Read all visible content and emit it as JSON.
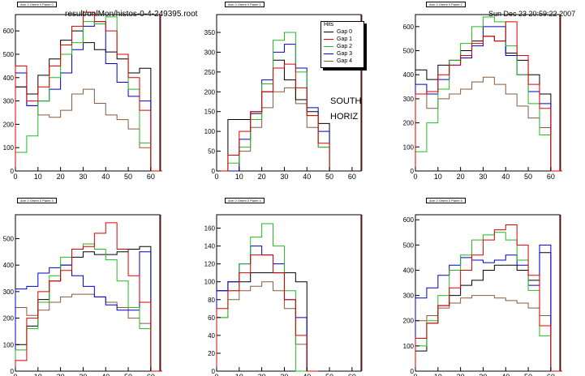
{
  "header": {
    "file_path": "result/onlMon/histos-0-4-249395.root",
    "datetime": "Sun Dec 23 20:59:22 2007"
  },
  "annotation": {
    "line1": "SOUTH",
    "line2": "HORIZ"
  },
  "legend": {
    "title": "Hits",
    "entries": [
      "Gap 0",
      "Gap 1",
      "Gap 2",
      "Gap 3",
      "Gap 4"
    ]
  },
  "colors": {
    "Gap 0": "#000000",
    "Gap 1": "#dd0000",
    "Gap 2": "#22bb22",
    "Gap 3": "#0000cc",
    "Gap 4": "#8b5a3c"
  },
  "chart_data": [
    {
      "type": "line",
      "title": "Arm 0 Orient 0 Panel 0",
      "xlim": [
        0,
        64
      ],
      "ylim": [
        0,
        670
      ],
      "xticks": [
        0,
        10,
        20,
        30,
        40,
        50,
        60
      ],
      "yticks": [
        0,
        100,
        200,
        300,
        400,
        500,
        600
      ],
      "x": [
        0,
        5,
        10,
        15,
        20,
        25,
        30,
        35,
        40,
        45,
        50,
        55,
        60
      ],
      "series": [
        {
          "name": "Gap 0",
          "values": [
            360,
            330,
            410,
            480,
            560,
            600,
            550,
            520,
            510,
            480,
            420,
            440,
            0
          ]
        },
        {
          "name": "Gap 1",
          "values": [
            450,
            300,
            360,
            450,
            540,
            620,
            680,
            640,
            600,
            500,
            400,
            260,
            0
          ]
        },
        {
          "name": "Gap 2",
          "values": [
            80,
            150,
            300,
            400,
            500,
            550,
            640,
            630,
            660,
            500,
            350,
            120,
            0
          ]
        },
        {
          "name": "Gap 3",
          "values": [
            420,
            280,
            300,
            350,
            420,
            520,
            620,
            640,
            460,
            380,
            320,
            300,
            0
          ]
        },
        {
          "name": "Gap 4",
          "values": [
            360,
            280,
            240,
            230,
            260,
            330,
            350,
            290,
            240,
            220,
            180,
            100,
            0
          ]
        }
      ]
    },
    {
      "type": "line",
      "title": "Arm 0 Orient 0 Panel 1",
      "xlim": [
        0,
        64
      ],
      "ylim": [
        0,
        395
      ],
      "xticks": [
        0,
        10,
        20,
        30,
        40,
        50,
        60
      ],
      "yticks": [
        0,
        50,
        100,
        150,
        200,
        250,
        300,
        350
      ],
      "x": [
        0,
        5,
        10,
        15,
        20,
        25,
        30,
        35,
        40,
        45
      ],
      "series": [
        {
          "name": "Gap 0",
          "values": [
            0,
            130,
            130,
            145,
            200,
            280,
            230,
            180,
            150,
            120
          ]
        },
        {
          "name": "Gap 1",
          "values": [
            0,
            40,
            100,
            150,
            200,
            260,
            270,
            210,
            140,
            70
          ]
        },
        {
          "name": "Gap 2",
          "values": [
            0,
            20,
            60,
            130,
            220,
            330,
            350,
            250,
            140,
            60
          ]
        },
        {
          "name": "Gap 3",
          "values": [
            0,
            0,
            80,
            150,
            230,
            300,
            320,
            260,
            160,
            100
          ]
        },
        {
          "name": "Gap 4",
          "values": [
            0,
            0,
            50,
            110,
            160,
            200,
            210,
            170,
            110,
            60
          ]
        }
      ]
    },
    {
      "type": "line",
      "title": "Arm 0 Orient 0 Panel 2",
      "xlim": [
        0,
        64
      ],
      "ylim": [
        0,
        650
      ],
      "xticks": [
        0,
        10,
        20,
        30,
        40,
        50,
        60
      ],
      "yticks": [
        0,
        100,
        200,
        300,
        400,
        500,
        600
      ],
      "x": [
        0,
        5,
        10,
        15,
        20,
        25,
        30,
        35,
        40,
        45,
        50,
        55,
        60
      ],
      "series": [
        {
          "name": "Gap 0",
          "values": [
            420,
            380,
            440,
            460,
            500,
            540,
            560,
            540,
            490,
            460,
            400,
            320,
            0
          ]
        },
        {
          "name": "Gap 1",
          "values": [
            320,
            330,
            400,
            440,
            480,
            530,
            560,
            540,
            620,
            480,
            360,
            260,
            0
          ]
        },
        {
          "name": "Gap 2",
          "values": [
            80,
            200,
            340,
            460,
            530,
            600,
            640,
            620,
            520,
            400,
            280,
            150,
            0
          ]
        },
        {
          "name": "Gap 3",
          "values": [
            360,
            320,
            380,
            440,
            470,
            520,
            600,
            600,
            480,
            400,
            330,
            280,
            0
          ]
        },
        {
          "name": "Gap 4",
          "values": [
            320,
            260,
            300,
            320,
            340,
            370,
            390,
            360,
            320,
            270,
            220,
            180,
            0
          ]
        }
      ]
    },
    {
      "type": "line",
      "title": "Arm 0 Orient 0 Panel 3",
      "xlim": [
        0,
        64
      ],
      "ylim": [
        0,
        590
      ],
      "xticks": [
        0,
        10,
        20,
        30,
        40,
        50,
        60
      ],
      "yticks": [
        0,
        100,
        200,
        300,
        400,
        500
      ],
      "x": [
        0,
        5,
        10,
        15,
        20,
        25,
        30,
        35,
        40,
        45,
        50,
        55,
        60
      ],
      "series": [
        {
          "name": "Gap 0",
          "values": [
            100,
            170,
            270,
            340,
            400,
            430,
            450,
            440,
            440,
            450,
            460,
            470,
            0
          ]
        },
        {
          "name": "Gap 1",
          "values": [
            40,
            200,
            300,
            340,
            380,
            460,
            470,
            520,
            560,
            460,
            360,
            260,
            0
          ]
        },
        {
          "name": "Gap 2",
          "values": [
            80,
            160,
            260,
            360,
            430,
            460,
            480,
            460,
            420,
            340,
            240,
            160,
            0
          ]
        },
        {
          "name": "Gap 3",
          "values": [
            310,
            320,
            370,
            390,
            400,
            360,
            320,
            280,
            250,
            230,
            230,
            450,
            0
          ]
        },
        {
          "name": "Gap 4",
          "values": [
            240,
            210,
            230,
            260,
            280,
            290,
            290,
            280,
            260,
            240,
            200,
            180,
            0
          ]
        }
      ]
    },
    {
      "type": "line",
      "title": "Arm 0 Orient 0 Panel 4",
      "xlim": [
        0,
        64
      ],
      "ylim": [
        0,
        175
      ],
      "xticks": [
        0,
        10,
        20,
        30,
        40,
        50,
        60
      ],
      "yticks": [
        0,
        20,
        40,
        60,
        80,
        100,
        120,
        140,
        160
      ],
      "x": [
        0,
        5,
        10,
        15,
        20,
        25,
        30,
        35,
        40
      ],
      "series": [
        {
          "name": "Gap 0",
          "values": [
            90,
            100,
            100,
            110,
            110,
            110,
            110,
            100,
            0
          ]
        },
        {
          "name": "Gap 1",
          "values": [
            70,
            90,
            110,
            130,
            130,
            110,
            80,
            40,
            0
          ]
        },
        {
          "name": "Gap 2",
          "values": [
            60,
            90,
            120,
            150,
            165,
            140,
            90,
            0,
            0
          ]
        },
        {
          "name": "Gap 3",
          "values": [
            90,
            100,
            120,
            140,
            130,
            120,
            80,
            60,
            0
          ]
        },
        {
          "name": "Gap 4",
          "values": [
            60,
            80,
            90,
            95,
            100,
            90,
            70,
            30,
            0
          ]
        }
      ]
    },
    {
      "type": "line",
      "title": "Arm 0 Orient 0 Panel 5",
      "xlim": [
        0,
        64
      ],
      "ylim": [
        0,
        620
      ],
      "xticks": [
        0,
        10,
        20,
        30,
        40,
        50,
        60
      ],
      "yticks": [
        0,
        100,
        200,
        300,
        400,
        500,
        600
      ],
      "x": [
        0,
        5,
        10,
        15,
        20,
        25,
        30,
        35,
        40,
        45,
        50,
        55,
        60
      ],
      "series": [
        {
          "name": "Gap 0",
          "values": [
            80,
            190,
            260,
            300,
            340,
            360,
            400,
            420,
            420,
            400,
            360,
            470,
            0
          ]
        },
        {
          "name": "Gap 1",
          "values": [
            130,
            190,
            260,
            330,
            400,
            460,
            520,
            560,
            580,
            500,
            380,
            180,
            0
          ]
        },
        {
          "name": "Gap 2",
          "values": [
            100,
            200,
            300,
            400,
            460,
            520,
            540,
            550,
            520,
            440,
            320,
            140,
            0
          ]
        },
        {
          "name": "Gap 3",
          "values": [
            290,
            330,
            380,
            420,
            450,
            440,
            430,
            440,
            460,
            420,
            340,
            500,
            0
          ]
        },
        {
          "name": "Gap 4",
          "values": [
            200,
            220,
            250,
            270,
            290,
            300,
            300,
            290,
            280,
            270,
            250,
            220,
            0
          ]
        }
      ]
    }
  ]
}
